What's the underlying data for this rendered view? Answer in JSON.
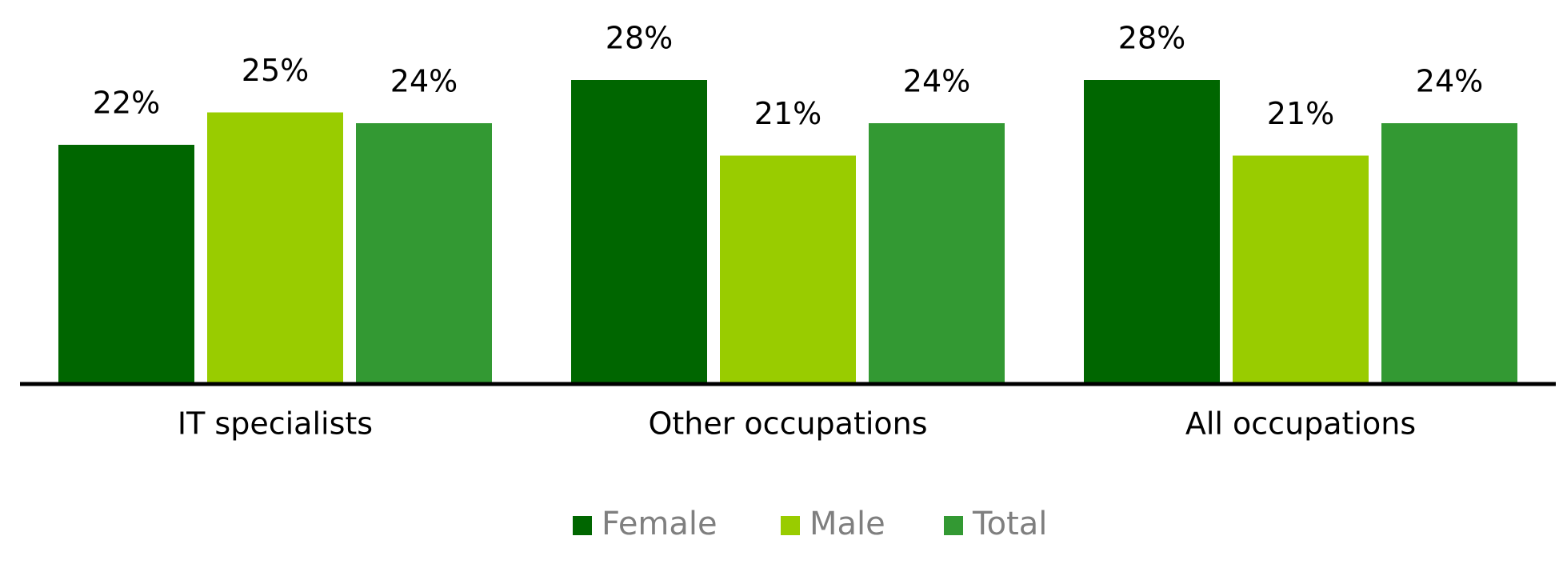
{
  "chart_data": {
    "type": "bar",
    "categories": [
      "IT specialists",
      "Other occupations",
      "All occupations"
    ],
    "series": [
      {
        "name": "Female",
        "color": "#006600",
        "values": [
          22,
          28,
          28
        ],
        "value_labels": [
          "22%",
          "28%",
          "28%"
        ]
      },
      {
        "name": "Male",
        "color": "#99cc00",
        "values": [
          25,
          21,
          21
        ],
        "value_labels": [
          "25%",
          "21%",
          "21%"
        ]
      },
      {
        "name": "Total",
        "color": "#339933",
        "values": [
          24,
          24,
          24
        ],
        "value_labels": [
          "24%",
          "24%",
          "24%"
        ]
      }
    ],
    "legend": "bottom"
  }
}
